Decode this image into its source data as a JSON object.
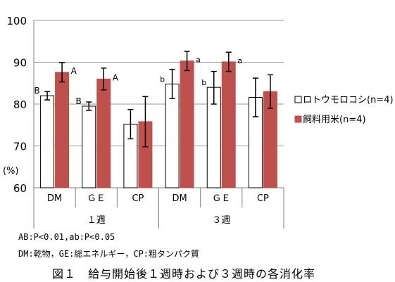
{
  "chart_data": {
    "type": "bar",
    "ylabel": "(%)",
    "ylim": [
      60,
      100
    ],
    "yticks": [
      60,
      70,
      80,
      90,
      100
    ],
    "grid": true,
    "legend_position": "right",
    "groups": [
      {
        "label": "１週",
        "categories": [
          "DM",
          "ＧＥ",
          "CP"
        ]
      },
      {
        "label": "３週",
        "categories": [
          "DM",
          "ＧＥ",
          "CP"
        ]
      }
    ],
    "series": [
      {
        "name": "ロトウモロコシ(n=4)",
        "color": "#ffffff",
        "values": [
          82.0,
          79.5,
          75.2,
          84.8,
          84.0,
          81.6
        ],
        "err_low": [
          1.0,
          1.0,
          3.5,
          3.5,
          4.0,
          4.6
        ],
        "err_high": [
          1.0,
          1.0,
          3.5,
          3.5,
          3.8,
          4.6
        ],
        "labels": [
          "B",
          "B",
          "",
          "b",
          "b",
          ""
        ]
      },
      {
        "name": "飼料用米(n=4)",
        "color": "#c0504d",
        "values": [
          87.6,
          86.0,
          75.8,
          90.3,
          90.1,
          83.0
        ],
        "err_low": [
          2.3,
          2.6,
          6.0,
          2.3,
          2.3,
          4.0
        ],
        "err_high": [
          2.3,
          2.6,
          6.0,
          2.3,
          2.3,
          4.0
        ],
        "labels": [
          "A",
          "A",
          "",
          "a",
          "a",
          ""
        ]
      }
    ]
  },
  "notes": {
    "significance": "AB:P<0.01,ab:P<0.05",
    "abbreviations": "DM:乾物，GE:総エネルギー，CP:粗タンパク質"
  },
  "caption": "図１　給与開始後１週時および３週時の各消化率"
}
